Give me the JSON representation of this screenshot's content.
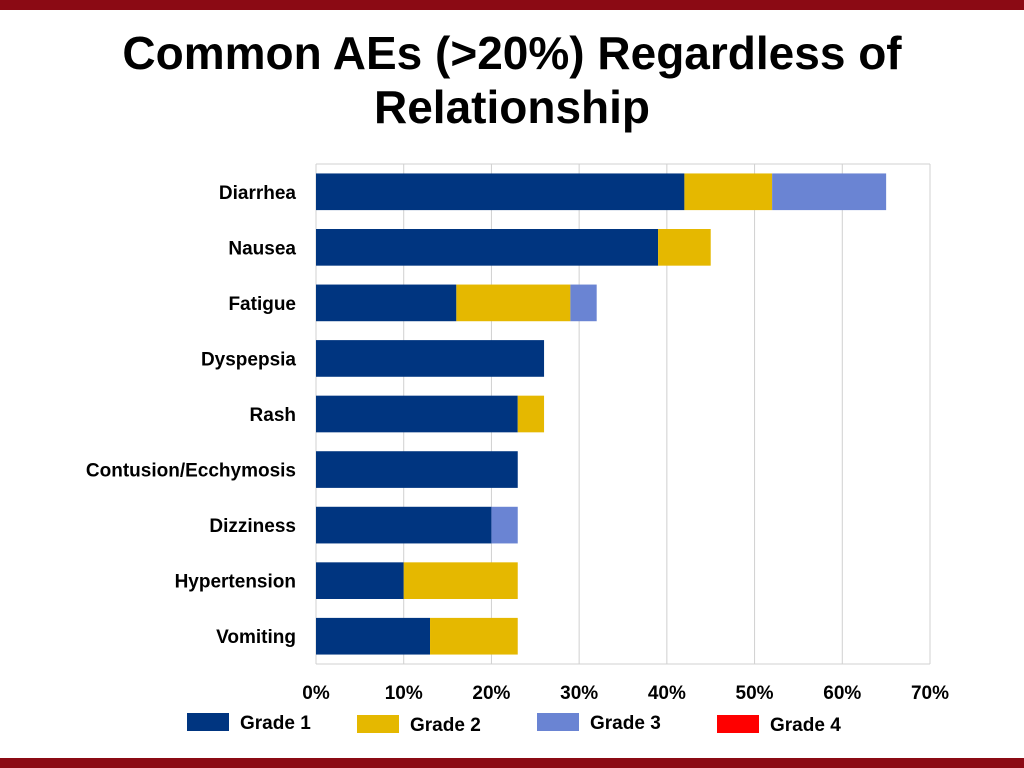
{
  "slide": {
    "title_line1": "Common AEs (>20%) Regardless of",
    "title_line2": "Relationship",
    "band_color": "#8B0A14"
  },
  "chart_data": {
    "type": "bar",
    "orientation": "horizontal",
    "stacked": true,
    "title": "Common AEs (>20%) Regardless of Relationship",
    "categories": [
      "Diarrhea",
      "Nausea",
      "Fatigue",
      "Dyspepsia",
      "Rash",
      "Contusion/Ecchymosis",
      "Dizziness",
      "Hypertension",
      "Vomiting"
    ],
    "series": [
      {
        "name": "Grade 1",
        "color": "#003580",
        "values": [
          42,
          39,
          16,
          26,
          23,
          23,
          20,
          10,
          13
        ]
      },
      {
        "name": "Grade 2",
        "color": "#E5B800",
        "values": [
          10,
          6,
          13,
          0,
          3,
          0,
          0,
          13,
          10
        ]
      },
      {
        "name": "Grade 3",
        "color": "#6A84D3",
        "values": [
          13,
          0,
          3,
          0,
          0,
          0,
          3,
          0,
          0
        ]
      },
      {
        "name": "Grade 4",
        "color": "#FF0000",
        "values": [
          0,
          0,
          0,
          0,
          0,
          0,
          0,
          0,
          0
        ]
      }
    ],
    "xlim": [
      0,
      70
    ],
    "x_ticks": [
      0,
      10,
      20,
      30,
      40,
      50,
      60,
      70
    ],
    "x_tick_labels": [
      "0%",
      "10%",
      "20%",
      "30%",
      "40%",
      "50%",
      "60%",
      "70%"
    ],
    "xlabel": "",
    "ylabel": "",
    "grid": true,
    "legend_position": "bottom"
  }
}
